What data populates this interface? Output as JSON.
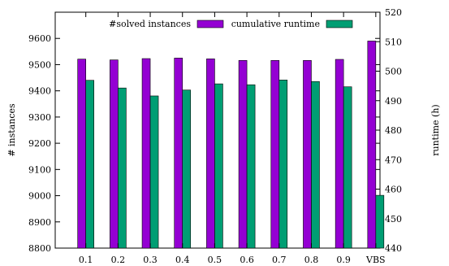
{
  "chart_data": {
    "type": "bar",
    "categories": [
      "0.1",
      "0.2",
      "0.3",
      "0.4",
      "0.5",
      "0.6",
      "0.7",
      "0.8",
      "0.9",
      "VBS"
    ],
    "series": [
      {
        "name": "#solved instances",
        "axis": "left",
        "color": "#9400d3",
        "values": [
          9521,
          9518,
          9523,
          9525,
          9522,
          9516,
          9516,
          9516,
          9520,
          9590
        ]
      },
      {
        "name": "cumulative runtime",
        "axis": "right",
        "color": "#009e73",
        "values": [
          496.9,
          494.3,
          491.6,
          493.6,
          495.7,
          495.4,
          497.0,
          496.5,
          494.7,
          457.9
        ]
      }
    ],
    "ylabel": "# instances",
    "y2label": "runtime (h)",
    "ylim": [
      8800,
      9700
    ],
    "y2lim": [
      440,
      520
    ],
    "yticks": [
      8800,
      8900,
      9000,
      9100,
      9200,
      9300,
      9400,
      9500,
      9600
    ],
    "y2ticks": [
      440,
      450,
      460,
      470,
      480,
      490,
      500,
      510,
      520
    ],
    "legend_position": "top",
    "grid": false
  }
}
